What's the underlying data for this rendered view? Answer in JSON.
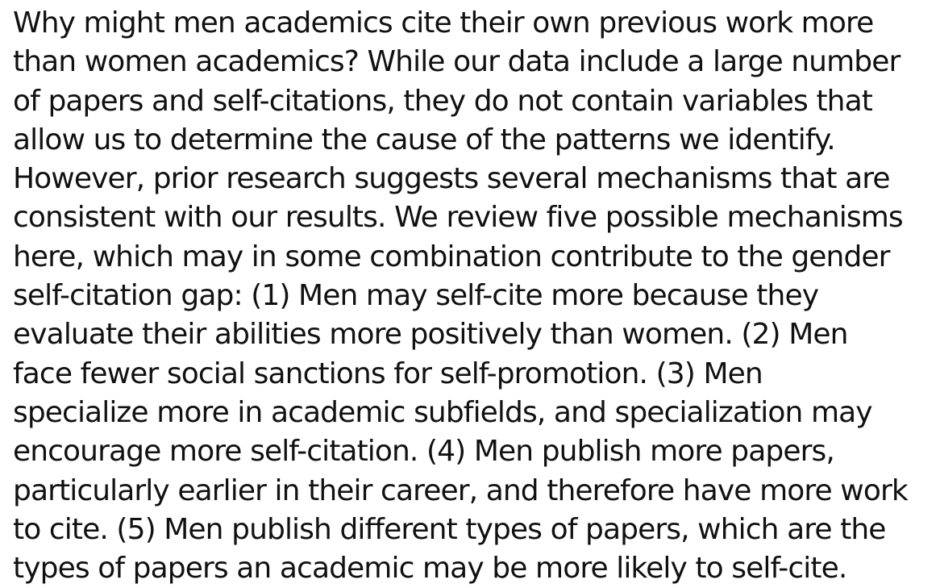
{
  "paragraph": {
    "lines": [
      "Why might men academics cite their own previous work more",
      "than women academics? While our data include a large number",
      "of papers and self-citations, they do not contain variables that",
      "allow us to determine the cause of the patterns we identify.",
      "However, prior research suggests several mechanisms that are",
      "consistent with our results. We review five possible mechanisms",
      "here, which may in some combination contribute to the gender",
      "self-citation gap: (1) Men may self-cite more because they",
      "evaluate their abilities more positively than women. (2) Men",
      "face fewer social sanctions for self-promotion. (3) Men",
      "specialize more in academic subfields, and specialization may",
      "encourage more self-citation. (4) Men publish more papers,",
      "particularly earlier in their career, and therefore have more work",
      "to cite. (5) Men publish different types of papers, which are the",
      "types of papers an academic may be more likely to self-cite."
    ]
  }
}
